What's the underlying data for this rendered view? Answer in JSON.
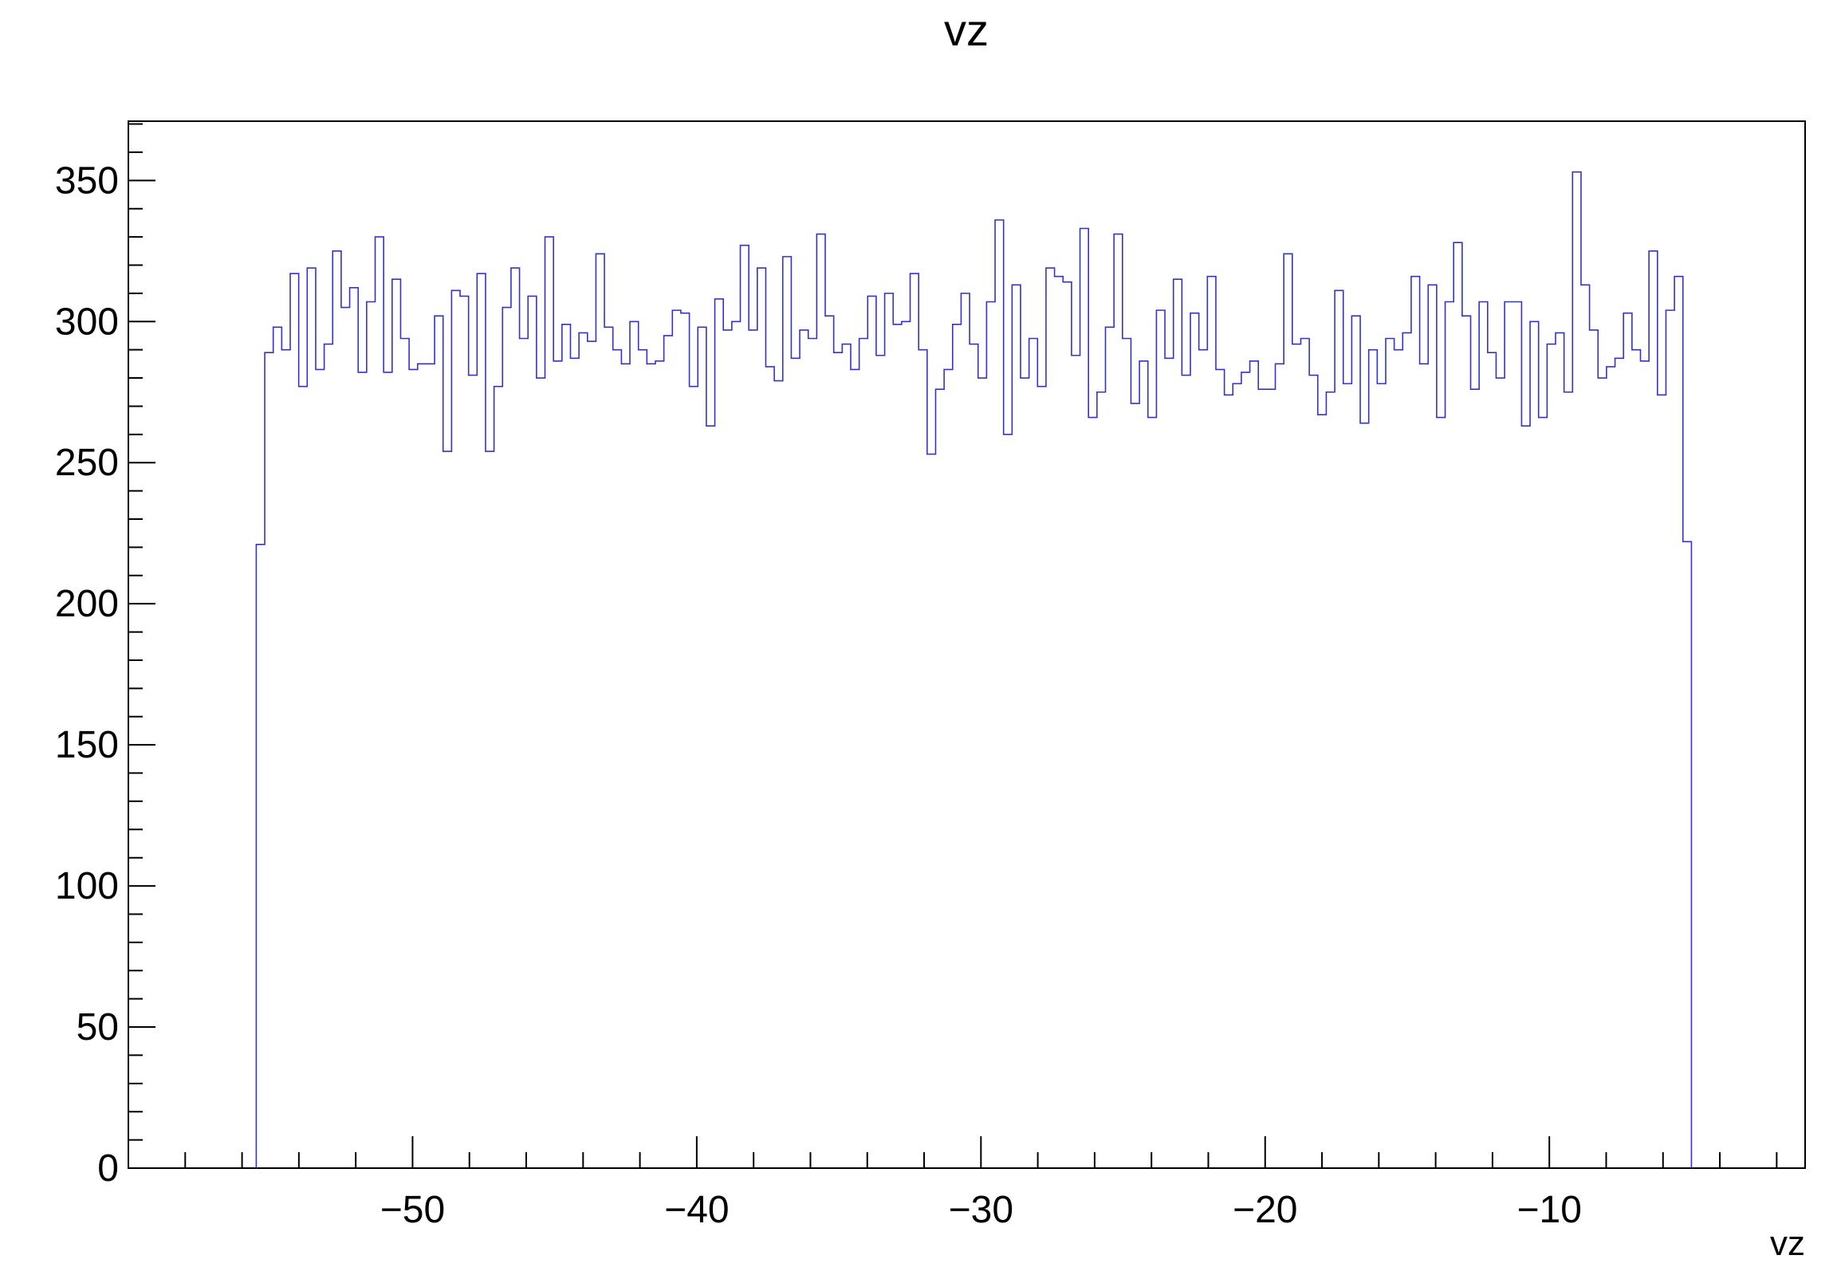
{
  "chart_data": {
    "type": "histogram",
    "title": "vz",
    "xlabel": "vz",
    "ylabel": "",
    "xlim": [
      -60,
      -1
    ],
    "ylim": [
      0,
      371
    ],
    "grid": false,
    "legend": "none",
    "line_color": "#3333cc",
    "x_ticks": [
      -50,
      -40,
      -30,
      -20,
      -10
    ],
    "x_tick_labels": [
      "−50",
      "−40",
      "−30",
      "−20",
      "−10"
    ],
    "y_ticks": [
      0,
      50,
      100,
      150,
      200,
      250,
      300,
      350
    ],
    "y_tick_labels": [
      "0",
      "50",
      "100",
      "150",
      "200",
      "250",
      "300",
      "350"
    ],
    "bin_width": 0.3,
    "bin_edges_start": -55.5,
    "bin_edges_end": -5.0,
    "values": [
      221,
      289,
      298,
      290,
      317,
      277,
      319,
      283,
      292,
      325,
      305,
      312,
      282,
      307,
      330,
      282,
      315,
      294,
      283,
      285,
      285,
      302,
      254,
      311,
      309,
      281,
      317,
      254,
      277,
      305,
      319,
      294,
      309,
      280,
      330,
      286,
      299,
      287,
      296,
      293,
      324,
      298,
      290,
      285,
      300,
      290,
      285,
      286,
      295,
      304,
      303,
      277,
      298,
      263,
      308,
      297,
      300,
      327,
      297,
      319,
      284,
      279,
      323,
      287,
      297,
      294,
      331,
      302,
      289,
      292,
      283,
      294,
      309,
      288,
      310,
      299,
      300,
      317,
      290,
      253,
      276,
      283,
      299,
      310,
      292,
      280,
      307,
      336,
      260,
      313,
      280,
      294,
      277,
      319,
      316,
      314,
      288,
      333,
      266,
      275,
      298,
      331,
      294,
      271,
      286,
      266,
      304,
      287,
      315,
      281,
      303,
      290,
      316,
      283,
      274,
      278,
      282,
      286,
      276,
      276,
      285,
      324,
      292,
      294,
      281,
      267,
      275,
      311,
      278,
      302,
      264,
      290,
      278,
      294,
      290,
      296,
      316,
      285,
      313,
      266,
      307,
      328,
      302,
      276,
      307,
      289,
      280,
      307,
      307,
      263,
      300,
      266,
      292,
      296,
      275,
      353,
      313,
      297,
      280,
      284,
      287,
      303,
      290,
      286,
      325,
      274,
      304,
      316,
      222
    ]
  }
}
